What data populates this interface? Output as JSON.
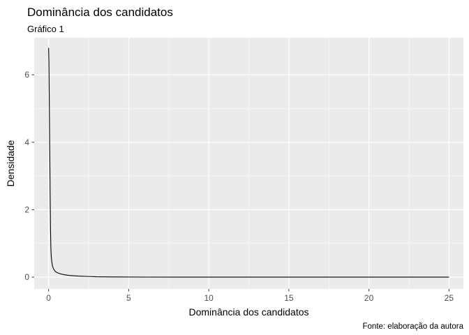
{
  "chart_data": {
    "type": "line",
    "title": "Dominância dos candidatos",
    "subtitle": "Gráfico 1",
    "xlabel": "Dominância dos candidatos",
    "ylabel": "Densidade",
    "caption": "Fonte: elaboração da autora",
    "xlim": [
      -0.9,
      25.9
    ],
    "ylim": [
      -0.35,
      7.1
    ],
    "x_ticks": [
      0,
      5,
      10,
      15,
      20,
      25
    ],
    "x_tick_labels": [
      "0",
      "5",
      "10",
      "15",
      "20",
      "25"
    ],
    "y_ticks": [
      0,
      2,
      4,
      6
    ],
    "y_tick_labels": [
      "0",
      "2",
      "4",
      "6"
    ],
    "grid": true,
    "legend": "none",
    "colors": {
      "panel": "#ebebeb",
      "grid": "#ffffff",
      "line": "#000000"
    },
    "series": [
      {
        "x": [
          0.0,
          0.02,
          0.04,
          0.06,
          0.08,
          0.1,
          0.12,
          0.14,
          0.16,
          0.2,
          0.25,
          0.3,
          0.4,
          0.5,
          0.6,
          0.8,
          1.0,
          1.3,
          1.6,
          2.0,
          2.5,
          3.0,
          4.0,
          6.0,
          10.0,
          15.0,
          20.0,
          25.0
        ],
        "y": [
          6.8,
          6.4,
          5.4,
          4.3,
          3.3,
          2.3,
          1.4,
          0.9,
          0.65,
          0.45,
          0.32,
          0.25,
          0.18,
          0.14,
          0.12,
          0.09,
          0.07,
          0.05,
          0.04,
          0.03,
          0.02,
          0.01,
          0.005,
          0.002,
          0.001,
          0.0,
          0.0,
          0.0
        ]
      }
    ]
  }
}
